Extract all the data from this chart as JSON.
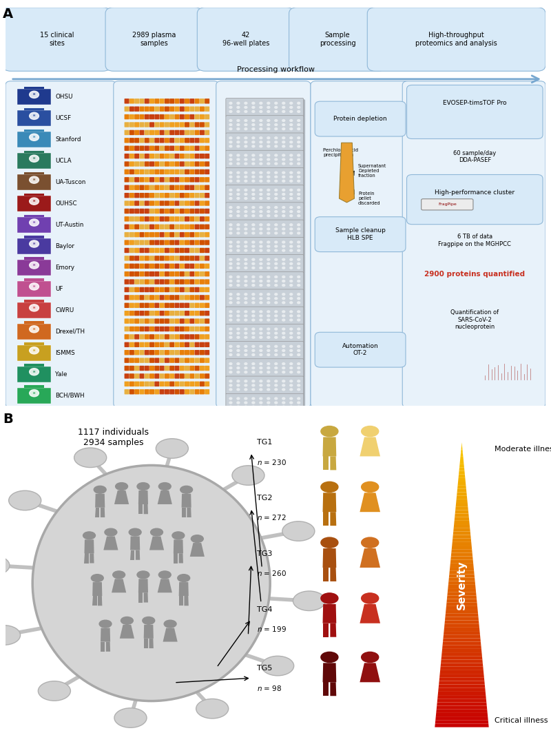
{
  "panel_a_label": "A",
  "panel_b_label": "B",
  "workflow_box_texts": [
    "15 clinical\nsites",
    "2989 plasma\nsamples",
    "42\n96-well plates",
    "Sample\nprocessing",
    "High-throughput\nproteomics and analysis"
  ],
  "workflow_arrow_label": "Processing workflow",
  "clinical_sites": [
    {
      "name": "OHSU",
      "color": "#1F3A8E"
    },
    {
      "name": "UCSF",
      "color": "#2A4FA0"
    },
    {
      "name": "Stanford",
      "color": "#3A8AB8"
    },
    {
      "name": "UCLA",
      "color": "#2A7A5E"
    },
    {
      "name": "UA-Tuscon",
      "color": "#7A5030"
    },
    {
      "name": "OUHSC",
      "color": "#9B1A1A"
    },
    {
      "name": "UT-Austin",
      "color": "#7040B0"
    },
    {
      "name": "Baylor",
      "color": "#4A3AA0"
    },
    {
      "name": "Emory",
      "color": "#8A3A98"
    },
    {
      "name": "UF",
      "color": "#C05090"
    },
    {
      "name": "CWRU",
      "color": "#C84040"
    },
    {
      "name": "Drexel/TH",
      "color": "#D06820"
    },
    {
      "name": "ISMMS",
      "color": "#C8A020"
    },
    {
      "name": "Yale",
      "color": "#209060"
    },
    {
      "name": "BCH/BWH",
      "color": "#28A858"
    }
  ],
  "tg_groups": [
    {
      "name": "TG1",
      "n": 230,
      "color": "#F0D070",
      "dark_color": "#C8A840"
    },
    {
      "name": "TG2",
      "n": 272,
      "color": "#E09020",
      "dark_color": "#B87010"
    },
    {
      "name": "TG3",
      "n": 260,
      "color": "#D07020",
      "dark_color": "#A85010"
    },
    {
      "name": "TG4",
      "n": 199,
      "color": "#C83020",
      "dark_color": "#A01010"
    },
    {
      "name": "TG5",
      "n": 98,
      "color": "#901010",
      "dark_color": "#600808"
    }
  ],
  "individuals_text": "1117 individuals\n2934 samples",
  "severity_label": "Severity",
  "moderate_label": "Moderate illness",
  "critical_label": "Critical illness",
  "bg_color": "#FFFFFF",
  "box_fill": "#D8EAF8",
  "box_edge": "#90B8D8",
  "panel_bg": "#E8F2FA",
  "arrow_color": "#78A8D0",
  "virus_body": "#C8C8C8",
  "virus_spike": "#B8B8B8",
  "person_inside": "#909090",
  "dot_colors": [
    "#E8800A",
    "#F0A020",
    "#D05000",
    "#E8B040",
    "#C84010"
  ],
  "plate_color": "#C8D0D8",
  "plate_well": "#E8ECEF"
}
